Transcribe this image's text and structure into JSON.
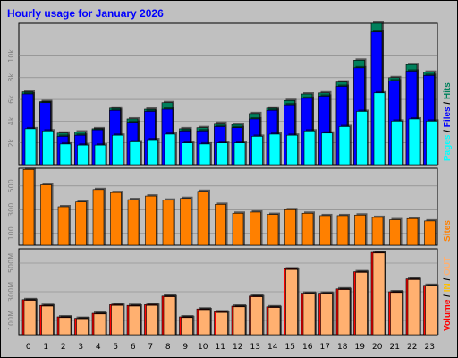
{
  "chart_data": {
    "type": "bar",
    "title": "Hourly usage for January 2026",
    "categories": [
      "0",
      "1",
      "2",
      "3",
      "4",
      "5",
      "6",
      "7",
      "8",
      "9",
      "10",
      "11",
      "12",
      "13",
      "14",
      "15",
      "16",
      "17",
      "18",
      "19",
      "20",
      "21",
      "22",
      "23"
    ],
    "colors": {
      "title": "#0000ff",
      "hits": "#00805c",
      "files": "#0000ff",
      "pages": "#00ffff",
      "sites": "#ff8000",
      "volume": "#ff0000",
      "in": "#ffc000",
      "out": "#ffb070",
      "grid": "#808080"
    },
    "panels": [
      {
        "name": "hits-files-pages",
        "yticks": [
          "2k",
          "4k",
          "6k",
          "8k",
          "10k"
        ],
        "yticks_values": [
          2000,
          4000,
          6000,
          8000,
          10000
        ],
        "ylim": [
          0,
          13000
        ],
        "legend": [
          {
            "label": "Pages",
            "color_key": "pages"
          },
          {
            "label": " / ",
            "color_key": "text"
          },
          {
            "label": "Files",
            "color_key": "files"
          },
          {
            "label": " / ",
            "color_key": "text"
          },
          {
            "label": "Hits",
            "color_key": "hits"
          }
        ],
        "series": [
          {
            "name": "Hits",
            "values": [
              6700,
              5800,
              2900,
              3000,
              3300,
              5200,
              4200,
              5100,
              5700,
              3300,
              3400,
              3800,
              3700,
              4700,
              5200,
              5900,
              6500,
              6600,
              7600,
              9600,
              13000,
              8000,
              9200,
              8500
            ]
          },
          {
            "name": "Files",
            "values": [
              6500,
              5700,
              2600,
              2700,
              3200,
              5000,
              3900,
              4900,
              5100,
              3100,
              3100,
              3500,
              3400,
              4200,
              5000,
              5500,
              6100,
              6300,
              7200,
              8900,
              12200,
              7700,
              8600,
              8200
            ]
          },
          {
            "name": "Pages",
            "values": [
              3300,
              3100,
              1900,
              1800,
              1800,
              2700,
              2100,
              2300,
              2800,
              2000,
              1900,
              2000,
              2000,
              2600,
              2800,
              2700,
              3100,
              2900,
              3500,
              4900,
              6600,
              4000,
              4200,
              4000
            ]
          }
        ]
      },
      {
        "name": "sites",
        "yticks": [
          "100",
          "300",
          "500"
        ],
        "yticks_values": [
          100,
          300,
          500
        ],
        "ylim": [
          0,
          650
        ],
        "legend": [
          {
            "label": "Sites",
            "color_key": "sites"
          }
        ],
        "series": [
          {
            "name": "Sites",
            "values": [
              640,
              510,
              325,
              365,
              470,
              445,
              385,
              415,
              380,
              395,
              455,
              345,
              270,
              280,
              260,
              300,
              270,
              250,
              250,
              255,
              235,
              215,
              225,
              205
            ]
          }
        ]
      },
      {
        "name": "volume",
        "yticks": [
          "100M",
          "300M",
          "500M"
        ],
        "yticks_values": [
          100,
          300,
          500
        ],
        "ylim": [
          0,
          600
        ],
        "legend": [
          {
            "label": "Volume",
            "color_key": "volume"
          },
          {
            "label": " / ",
            "color_key": "text"
          },
          {
            "label": "IN",
            "color_key": "in"
          },
          {
            "label": " / ",
            "color_key": "text"
          },
          {
            "label": "OUT",
            "color_key": "out"
          }
        ],
        "series": [
          {
            "name": "Volume",
            "values": [
              245,
              205,
              125,
              115,
              150,
              210,
              205,
              210,
              270,
              125,
              180,
              160,
              200,
              270,
              195,
              460,
              290,
              290,
              320,
              440,
              575,
              300,
              390,
              345
            ]
          },
          {
            "name": "OUT",
            "values": [
              240,
              200,
              120,
              112,
              145,
              205,
              200,
              205,
              265,
              120,
              175,
              155,
              195,
              265,
              190,
              455,
              285,
              285,
              315,
              435,
              570,
              295,
              385,
              340
            ]
          }
        ]
      }
    ]
  }
}
